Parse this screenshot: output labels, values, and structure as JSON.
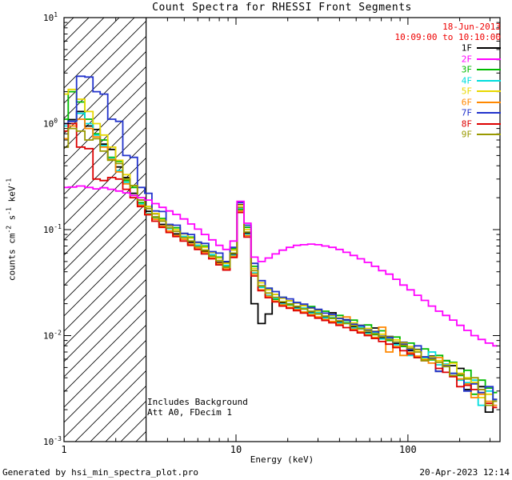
{
  "chart_data": {
    "type": "line",
    "title": "Count Spectra for RHESSI Front Segments",
    "xlabel": "Energy (keV)",
    "ylabel_segments": [
      {
        "text": "counts cm"
      },
      {
        "text": "-2",
        "sup": true
      },
      {
        "text": " s"
      },
      {
        "text": "-1",
        "sup": true
      },
      {
        "text": " keV"
      },
      {
        "text": "-1",
        "sup": true
      }
    ],
    "x_scale": "log",
    "y_scale": "log",
    "xlim": [
      1,
      343
    ],
    "ylim": [
      0.001,
      10
    ],
    "grid": false,
    "x_ticks": [
      {
        "value": 1,
        "label": "1"
      },
      {
        "value": 10,
        "label": "10"
      },
      {
        "value": 100,
        "label": "100"
      }
    ],
    "y_ticks": [
      {
        "value": 10,
        "mant": "10",
        "exp": "1"
      },
      {
        "value": 1,
        "mant": "10",
        "exp": "0"
      },
      {
        "value": 0.1,
        "mant": "10",
        "exp": "-1"
      },
      {
        "value": 0.01,
        "mant": "10",
        "exp": "-2"
      },
      {
        "value": 0.001,
        "mant": "10",
        "exp": "-3"
      }
    ],
    "hatch_region": {
      "xmin": 1,
      "xmax": 3
    },
    "legend": {
      "date": "18-Jun-2013",
      "time_range": "10:09:00 to 10:10:00",
      "color": "#EE0000",
      "position": "top-right-inside"
    },
    "annotations": [
      "Includes Background",
      "Att A0, FDecim 1"
    ],
    "energies_keV": [
      1.0,
      1.12,
      1.25,
      1.4,
      1.55,
      1.7,
      1.9,
      2.1,
      2.3,
      2.55,
      2.8,
      3.1,
      3.4,
      3.75,
      4.1,
      4.5,
      5.0,
      5.5,
      6.0,
      6.6,
      7.3,
      8.0,
      8.8,
      9.7,
      10.6,
      11.7,
      12.8,
      14.1,
      15.5,
      17.0,
      18.7,
      20.6,
      22.6,
      24.9,
      27.4,
      30.1,
      33.1,
      36.4,
      40.0,
      44.0,
      48.4,
      53.2,
      58.6,
      64.4,
      70.8,
      77.9,
      85.7,
      94.2,
      103.6,
      114.0,
      125.4,
      137.9,
      151.7,
      166.8,
      183.5,
      201.8,
      222.0,
      244.1,
      268.5,
      295.4,
      330.0
    ],
    "series": [
      {
        "name": "1F",
        "color": "#000000",
        "values": [
          1.0,
          1.09,
          1.3,
          0.95,
          0.88,
          0.64,
          0.57,
          0.39,
          0.31,
          0.22,
          0.19,
          0.149,
          0.141,
          0.112,
          0.109,
          0.091,
          0.092,
          0.076,
          0.076,
          0.063,
          0.061,
          0.049,
          0.049,
          0.059,
          0.172,
          0.093,
          0.02,
          0.013,
          0.016,
          0.0245,
          0.0205,
          0.0213,
          0.0186,
          0.0192,
          0.0167,
          0.0172,
          0.015,
          0.0164,
          0.0135,
          0.0141,
          0.0122,
          0.0125,
          0.0107,
          0.0118,
          0.0095,
          0.0098,
          0.0084,
          0.0086,
          0.0072,
          0.0074,
          0.0063,
          0.0064,
          0.0046,
          0.0058,
          0.0052,
          0.0049,
          0.0031,
          0.0036,
          0.0033,
          0.0019,
          0.0025
        ]
      },
      {
        "name": "2F",
        "color": "#FF00FF",
        "values": [
          0.25,
          0.252,
          0.258,
          0.25,
          0.242,
          0.248,
          0.24,
          0.231,
          0.222,
          0.21,
          0.2,
          0.19,
          0.176,
          0.162,
          0.15,
          0.139,
          0.126,
          0.113,
          0.101,
          0.09,
          0.08,
          0.071,
          0.065,
          0.078,
          0.185,
          0.115,
          0.055,
          0.05,
          0.054,
          0.059,
          0.064,
          0.068,
          0.071,
          0.072,
          0.073,
          0.072,
          0.07,
          0.068,
          0.065,
          0.061,
          0.057,
          0.053,
          0.049,
          0.045,
          0.041,
          0.038,
          0.034,
          0.03,
          0.027,
          0.024,
          0.0215,
          0.019,
          0.017,
          0.0155,
          0.014,
          0.0125,
          0.0112,
          0.01,
          0.0092,
          0.0085,
          0.008
        ]
      },
      {
        "name": "3F",
        "color": "#00BB00",
        "values": [
          1.1,
          2.0,
          1.6,
          1.1,
          0.8,
          0.7,
          0.48,
          0.44,
          0.29,
          0.25,
          0.18,
          0.165,
          0.13,
          0.127,
          0.103,
          0.104,
          0.086,
          0.085,
          0.071,
          0.07,
          0.057,
          0.055,
          0.045,
          0.066,
          0.155,
          0.105,
          0.045,
          0.029,
          0.028,
          0.022,
          0.023,
          0.0195,
          0.0205,
          0.0178,
          0.0188,
          0.016,
          0.017,
          0.0145,
          0.0155,
          0.013,
          0.014,
          0.0116,
          0.0126,
          0.0102,
          0.0111,
          0.009,
          0.0097,
          0.0079,
          0.0085,
          0.0062,
          0.0075,
          0.0059,
          0.0065,
          0.0058,
          0.0056,
          0.0042,
          0.0047,
          0.0028,
          0.0038,
          0.0032,
          0.0029
        ]
      },
      {
        "name": "4F",
        "color": "#00DDDD",
        "values": [
          0.95,
          1.05,
          1.25,
          1.0,
          0.78,
          0.62,
          0.47,
          0.36,
          0.28,
          0.21,
          0.175,
          0.142,
          0.132,
          0.106,
          0.102,
          0.087,
          0.086,
          0.072,
          0.071,
          0.059,
          0.058,
          0.047,
          0.046,
          0.057,
          0.16,
          0.09,
          0.039,
          0.0285,
          0.024,
          0.0225,
          0.0198,
          0.02,
          0.018,
          0.0182,
          0.0163,
          0.0165,
          0.0147,
          0.0149,
          0.0132,
          0.0134,
          0.0118,
          0.012,
          0.0105,
          0.0107,
          0.0093,
          0.0095,
          0.0082,
          0.0084,
          0.0065,
          0.0073,
          0.0062,
          0.007,
          0.0053,
          0.0054,
          0.0044,
          0.0038,
          0.0036,
          0.0038,
          0.0022,
          0.003,
          0.0024
        ]
      },
      {
        "name": "5F",
        "color": "#E8D800",
        "values": [
          1.9,
          2.1,
          1.7,
          1.3,
          1.0,
          0.78,
          0.6,
          0.45,
          0.33,
          0.26,
          0.2,
          0.165,
          0.142,
          0.124,
          0.11,
          0.1,
          0.091,
          0.083,
          0.075,
          0.068,
          0.061,
          0.054,
          0.048,
          0.064,
          0.17,
          0.1,
          0.043,
          0.0315,
          0.027,
          0.0245,
          0.0225,
          0.0213,
          0.0202,
          0.0192,
          0.0181,
          0.0171,
          0.0163,
          0.0155,
          0.0147,
          0.0139,
          0.0132,
          0.0124,
          0.0117,
          0.011,
          0.0103,
          0.0097,
          0.0091,
          0.0085,
          0.0079,
          0.0073,
          0.006,
          0.0063,
          0.0058,
          0.0053,
          0.0055,
          0.0044,
          0.004,
          0.0036,
          0.0026,
          0.0028,
          0.0025
        ]
      },
      {
        "name": "6F",
        "color": "#FF8800",
        "values": [
          0.72,
          0.95,
          1.1,
          0.9,
          0.75,
          0.6,
          0.46,
          0.35,
          0.27,
          0.21,
          0.17,
          0.14,
          0.125,
          0.108,
          0.097,
          0.088,
          0.081,
          0.073,
          0.067,
          0.061,
          0.054,
          0.048,
          0.0425,
          0.056,
          0.15,
          0.088,
          0.038,
          0.027,
          0.0235,
          0.0212,
          0.0195,
          0.0185,
          0.0176,
          0.0167,
          0.0158,
          0.015,
          0.0142,
          0.0136,
          0.0128,
          0.015,
          0.0115,
          0.0109,
          0.0102,
          0.0096,
          0.012,
          0.007,
          0.0079,
          0.0065,
          0.0069,
          0.0064,
          0.0059,
          0.0055,
          0.0062,
          0.0052,
          0.0042,
          0.0039,
          0.0035,
          0.0026,
          0.0028,
          0.0024,
          0.0022
        ]
      },
      {
        "name": "7F",
        "color": "#2233CC",
        "values": [
          1.0,
          1.05,
          2.8,
          2.75,
          2.0,
          1.9,
          1.1,
          1.05,
          0.5,
          0.48,
          0.25,
          0.22,
          0.15,
          0.148,
          0.112,
          0.11,
          0.092,
          0.09,
          0.076,
          0.074,
          0.062,
          0.06,
          0.05,
          0.068,
          0.18,
          0.11,
          0.048,
          0.033,
          0.028,
          0.026,
          0.023,
          0.0222,
          0.0205,
          0.0198,
          0.0183,
          0.0177,
          0.0163,
          0.0158,
          0.0145,
          0.014,
          0.0128,
          0.0124,
          0.0113,
          0.0109,
          0.0099,
          0.0096,
          0.0086,
          0.0083,
          0.0074,
          0.008,
          0.0063,
          0.0061,
          0.0046,
          0.0052,
          0.0044,
          0.0043,
          0.003,
          0.0035,
          0.0029,
          0.0033,
          0.0025
        ]
      },
      {
        "name": "8F",
        "color": "#DD0000",
        "values": [
          0.85,
          1.0,
          0.6,
          0.58,
          0.3,
          0.29,
          0.31,
          0.3,
          0.24,
          0.2,
          0.165,
          0.138,
          0.12,
          0.105,
          0.094,
          0.086,
          0.078,
          0.071,
          0.065,
          0.059,
          0.053,
          0.0465,
          0.0415,
          0.0545,
          0.145,
          0.085,
          0.0365,
          0.0265,
          0.0228,
          0.0208,
          0.019,
          0.0181,
          0.0172,
          0.0163,
          0.0154,
          0.0146,
          0.0139,
          0.0132,
          0.0125,
          0.0119,
          0.0112,
          0.0106,
          0.01,
          0.0094,
          0.0088,
          0.0083,
          0.0077,
          0.0072,
          0.0067,
          0.0062,
          0.0058,
          0.006,
          0.0049,
          0.0045,
          0.0041,
          0.0033,
          0.0034,
          0.0031,
          0.0031,
          0.0023,
          0.0021
        ]
      },
      {
        "name": "9F",
        "color": "#999900",
        "values": [
          0.6,
          0.9,
          0.85,
          0.7,
          0.72,
          0.55,
          0.45,
          0.42,
          0.3,
          0.26,
          0.19,
          0.158,
          0.132,
          0.12,
          0.104,
          0.096,
          0.084,
          0.078,
          0.069,
          0.064,
          0.056,
          0.051,
          0.044,
          0.06,
          0.162,
          0.095,
          0.041,
          0.0295,
          0.0252,
          0.023,
          0.0209,
          0.0199,
          0.0189,
          0.0179,
          0.017,
          0.0161,
          0.0153,
          0.0146,
          0.0138,
          0.0131,
          0.0124,
          0.0117,
          0.0111,
          0.0104,
          0.0098,
          0.0092,
          0.0087,
          0.0081,
          0.0076,
          0.007,
          0.0058,
          0.006,
          0.0056,
          0.0051,
          0.0042,
          0.0043,
          0.0039,
          0.004,
          0.0031,
          0.0022,
          0.0024
        ]
      }
    ]
  },
  "footer": {
    "left": "Generated by hsi_min_spectra_plot.pro",
    "right": "20-Apr-2023 12:14"
  }
}
